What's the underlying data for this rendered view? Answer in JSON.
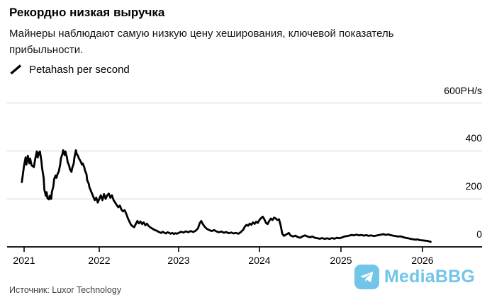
{
  "header": {
    "title": "Рекордно низкая выручка",
    "subtitle": "Майнеры наблюдают самую низкую цену хеширования, ключевой показатель прибыльности."
  },
  "legend": {
    "label": "Petahash per second",
    "marker": "diagonal-line-stroke",
    "marker_color": "#000000"
  },
  "source": {
    "label": "Источник: Luxor Technology"
  },
  "watermark": {
    "text": "MediaBBG",
    "icon": "telegram-plane-icon",
    "color": "#72c5e8"
  },
  "chart_data": {
    "type": "line",
    "title": "Рекордно низкая выручка",
    "xlabel": "",
    "ylabel": "PH/s",
    "grid": "horizontal",
    "legend_position": "top-left",
    "line_color": "#000000",
    "grid_color": "#d7d7d7",
    "axis_color": "#000000",
    "ylim": [
      0,
      600
    ],
    "xlim": [
      2020.95,
      2026.75
    ],
    "y_ticks": [
      {
        "value": 600,
        "label": "600PH/s"
      },
      {
        "value": 400,
        "label": "400"
      },
      {
        "value": 200,
        "label": "200"
      },
      {
        "value": 0,
        "label": "0"
      }
    ],
    "x_ticks": [
      "2021",
      "2022",
      "2023",
      "2024",
      "2025",
      "2026"
    ],
    "series": [
      {
        "name": "Petahash per second",
        "points": [
          [
            2020.97,
            270
          ],
          [
            2021.0,
            340
          ],
          [
            2021.02,
            373
          ],
          [
            2021.03,
            343
          ],
          [
            2021.05,
            380
          ],
          [
            2021.07,
            348
          ],
          [
            2021.08,
            368
          ],
          [
            2021.1,
            340
          ],
          [
            2021.13,
            333
          ],
          [
            2021.15,
            370
          ],
          [
            2021.17,
            398
          ],
          [
            2021.18,
            373
          ],
          [
            2021.2,
            393
          ],
          [
            2021.21,
            398
          ],
          [
            2021.23,
            358
          ],
          [
            2021.24,
            328
          ],
          [
            2021.26,
            288
          ],
          [
            2021.27,
            238
          ],
          [
            2021.29,
            213
          ],
          [
            2021.3,
            228
          ],
          [
            2021.31,
            203
          ],
          [
            2021.33,
            198
          ],
          [
            2021.34,
            213
          ],
          [
            2021.36,
            200
          ],
          [
            2021.37,
            228
          ],
          [
            2021.39,
            253
          ],
          [
            2021.4,
            283
          ],
          [
            2021.42,
            298
          ],
          [
            2021.43,
            288
          ],
          [
            2021.45,
            308
          ],
          [
            2021.46,
            313
          ],
          [
            2021.48,
            343
          ],
          [
            2021.49,
            368
          ],
          [
            2021.51,
            388
          ],
          [
            2021.52,
            403
          ],
          [
            2021.54,
            383
          ],
          [
            2021.55,
            398
          ],
          [
            2021.57,
            373
          ],
          [
            2021.58,
            353
          ],
          [
            2021.6,
            338
          ],
          [
            2021.61,
            323
          ],
          [
            2021.63,
            313
          ],
          [
            2021.64,
            328
          ],
          [
            2021.66,
            348
          ],
          [
            2021.67,
            373
          ],
          [
            2021.69,
            403
          ],
          [
            2021.7,
            388
          ],
          [
            2021.72,
            378
          ],
          [
            2021.73,
            368
          ],
          [
            2021.75,
            358
          ],
          [
            2021.77,
            343
          ],
          [
            2021.78,
            348
          ],
          [
            2021.8,
            333
          ],
          [
            2021.81,
            318
          ],
          [
            2021.83,
            303
          ],
          [
            2021.84,
            278
          ],
          [
            2021.86,
            263
          ],
          [
            2021.87,
            248
          ],
          [
            2021.89,
            233
          ],
          [
            2021.9,
            225
          ],
          [
            2021.92,
            210
          ],
          [
            2021.94,
            195
          ],
          [
            2021.96,
            205
          ],
          [
            2021.98,
            185
          ],
          [
            2022.0,
            200
          ],
          [
            2022.02,
            215
          ],
          [
            2022.04,
            195
          ],
          [
            2022.06,
            220
          ],
          [
            2022.08,
            200
          ],
          [
            2022.1,
            215
          ],
          [
            2022.12,
            222
          ],
          [
            2022.14,
            205
          ],
          [
            2022.16,
            215
          ],
          [
            2022.18,
            195
          ],
          [
            2022.2,
            185
          ],
          [
            2022.22,
            175
          ],
          [
            2022.24,
            165
          ],
          [
            2022.26,
            172
          ],
          [
            2022.28,
            155
          ],
          [
            2022.3,
            148
          ],
          [
            2022.32,
            153
          ],
          [
            2022.34,
            138
          ],
          [
            2022.36,
            120
          ],
          [
            2022.38,
            105
          ],
          [
            2022.4,
            92
          ],
          [
            2022.42,
            86
          ],
          [
            2022.44,
            82
          ],
          [
            2022.46,
            95
          ],
          [
            2022.48,
            108
          ],
          [
            2022.5,
            98
          ],
          [
            2022.52,
            106
          ],
          [
            2022.54,
            95
          ],
          [
            2022.56,
            102
          ],
          [
            2022.58,
            90
          ],
          [
            2022.6,
            97
          ],
          [
            2022.62,
            88
          ],
          [
            2022.64,
            82
          ],
          [
            2022.66,
            78
          ],
          [
            2022.68,
            74
          ],
          [
            2022.7,
            70
          ],
          [
            2022.72,
            68
          ],
          [
            2022.74,
            64
          ],
          [
            2022.76,
            61
          ],
          [
            2022.78,
            58
          ],
          [
            2022.8,
            63
          ],
          [
            2022.82,
            59
          ],
          [
            2022.84,
            56
          ],
          [
            2022.86,
            61
          ],
          [
            2022.88,
            58
          ],
          [
            2022.9,
            55
          ],
          [
            2022.92,
            58
          ],
          [
            2022.94,
            54
          ],
          [
            2022.96,
            57
          ],
          [
            2022.98,
            55
          ],
          [
            2023.0,
            58
          ],
          [
            2023.03,
            63
          ],
          [
            2023.06,
            60
          ],
          [
            2023.09,
            65
          ],
          [
            2023.12,
            61
          ],
          [
            2023.15,
            66
          ],
          [
            2023.18,
            62
          ],
          [
            2023.21,
            67
          ],
          [
            2023.24,
            78
          ],
          [
            2023.26,
            98
          ],
          [
            2023.28,
            108
          ],
          [
            2023.3,
            95
          ],
          [
            2023.32,
            85
          ],
          [
            2023.35,
            75
          ],
          [
            2023.38,
            70
          ],
          [
            2023.41,
            66
          ],
          [
            2023.44,
            70
          ],
          [
            2023.47,
            64
          ],
          [
            2023.5,
            61
          ],
          [
            2023.53,
            64
          ],
          [
            2023.56,
            59
          ],
          [
            2023.59,
            62
          ],
          [
            2023.62,
            57
          ],
          [
            2023.65,
            60
          ],
          [
            2023.68,
            56
          ],
          [
            2023.71,
            58
          ],
          [
            2023.74,
            55
          ],
          [
            2023.77,
            62
          ],
          [
            2023.8,
            72
          ],
          [
            2023.82,
            85
          ],
          [
            2023.84,
            92
          ],
          [
            2023.86,
            88
          ],
          [
            2023.88,
            97
          ],
          [
            2023.9,
            92
          ],
          [
            2023.92,
            102
          ],
          [
            2023.94,
            96
          ],
          [
            2023.96,
            105
          ],
          [
            2023.98,
            100
          ],
          [
            2024.0,
            112
          ],
          [
            2024.02,
            120
          ],
          [
            2024.04,
            126
          ],
          [
            2024.06,
            115
          ],
          [
            2024.08,
            100
          ],
          [
            2024.1,
            95
          ],
          [
            2024.12,
            108
          ],
          [
            2024.14,
            118
          ],
          [
            2024.16,
            112
          ],
          [
            2024.18,
            122
          ],
          [
            2024.2,
            118
          ],
          [
            2024.22,
            112
          ],
          [
            2024.24,
            115
          ],
          [
            2024.26,
            90
          ],
          [
            2024.28,
            55
          ],
          [
            2024.3,
            46
          ],
          [
            2024.33,
            52
          ],
          [
            2024.36,
            58
          ],
          [
            2024.38,
            48
          ],
          [
            2024.41,
            43
          ],
          [
            2024.44,
            47
          ],
          [
            2024.47,
            41
          ],
          [
            2024.5,
            38
          ],
          [
            2024.53,
            44
          ],
          [
            2024.56,
            48
          ],
          [
            2024.59,
            43
          ],
          [
            2024.62,
            40
          ],
          [
            2024.65,
            43
          ],
          [
            2024.68,
            38
          ],
          [
            2024.71,
            36
          ],
          [
            2024.74,
            34
          ],
          [
            2024.77,
            37
          ],
          [
            2024.8,
            33
          ],
          [
            2024.83,
            36
          ],
          [
            2024.86,
            33
          ],
          [
            2024.89,
            37
          ],
          [
            2024.92,
            34
          ],
          [
            2024.95,
            38
          ],
          [
            2024.98,
            36
          ],
          [
            2025.01,
            39
          ],
          [
            2025.04,
            43
          ],
          [
            2025.07,
            45
          ],
          [
            2025.1,
            47
          ],
          [
            2025.13,
            50
          ],
          [
            2025.16,
            48
          ],
          [
            2025.19,
            51
          ],
          [
            2025.22,
            48
          ],
          [
            2025.25,
            50
          ],
          [
            2025.28,
            47
          ],
          [
            2025.31,
            49
          ],
          [
            2025.34,
            46
          ],
          [
            2025.37,
            48
          ],
          [
            2025.4,
            45
          ],
          [
            2025.43,
            47
          ],
          [
            2025.46,
            49
          ],
          [
            2025.49,
            51
          ],
          [
            2025.52,
            53
          ],
          [
            2025.55,
            50
          ],
          [
            2025.58,
            52
          ],
          [
            2025.61,
            49
          ],
          [
            2025.64,
            47
          ],
          [
            2025.67,
            45
          ],
          [
            2025.7,
            43
          ],
          [
            2025.73,
            44
          ],
          [
            2025.76,
            41
          ],
          [
            2025.79,
            38
          ],
          [
            2025.82,
            36
          ],
          [
            2025.85,
            34
          ],
          [
            2025.88,
            32
          ],
          [
            2025.91,
            30
          ],
          [
            2025.94,
            31
          ],
          [
            2025.97,
            28
          ],
          [
            2026.0,
            27
          ],
          [
            2026.03,
            26
          ],
          [
            2026.06,
            25
          ],
          [
            2026.08,
            23
          ],
          [
            2026.1,
            21
          ]
        ]
      }
    ]
  }
}
